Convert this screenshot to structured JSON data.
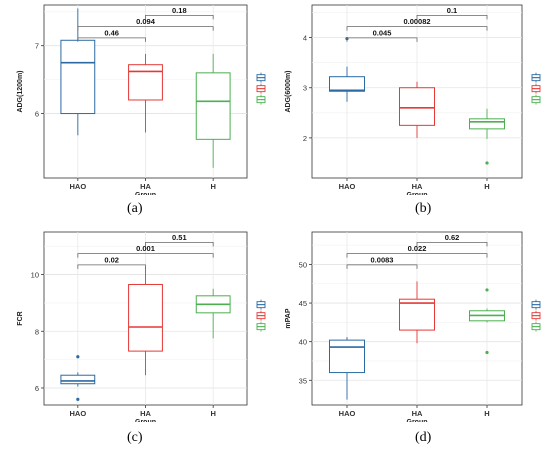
{
  "panels_meta": {
    "group_colors": {
      "HAO": "#2b6aa3",
      "HA": "#e53935",
      "H": "#4caf50"
    },
    "group_order": [
      "HAO",
      "HA",
      "H"
    ]
  },
  "chart_data": [
    {
      "type": "box",
      "caption": "(a)",
      "xlabel": "Group",
      "ylabel": "ADG(1200m)",
      "categories": [
        "HAO",
        "HA",
        "H"
      ],
      "ylim": [
        5.05,
        7.6
      ],
      "yticks": [
        6,
        7
      ],
      "grid": true,
      "legend": "right (color keys only)",
      "boxes": [
        {
          "group": "HAO",
          "min": 5.68,
          "q1": 6.0,
          "median": 6.75,
          "q3": 7.08,
          "max": 7.55,
          "outliers": []
        },
        {
          "group": "HA",
          "min": 5.72,
          "q1": 6.2,
          "median": 6.62,
          "q3": 6.72,
          "max": 6.88,
          "outliers": []
        },
        {
          "group": "H",
          "min": 5.2,
          "q1": 5.62,
          "median": 6.18,
          "q3": 6.6,
          "max": 6.88,
          "outliers": []
        }
      ],
      "comparisons": [
        {
          "from": "HAO",
          "to": "HA",
          "label": "0.46"
        },
        {
          "from": "HAO",
          "to": "H",
          "label": "0.094"
        },
        {
          "from": "HA",
          "to": "H",
          "label": "0.18"
        }
      ]
    },
    {
      "type": "box",
      "caption": "(b)",
      "xlabel": "Group",
      "ylabel": "ADG(6000m)",
      "categories": [
        "HAO",
        "HA",
        "H"
      ],
      "ylim": [
        1.2,
        4.65
      ],
      "yticks": [
        2,
        3,
        4
      ],
      "grid": true,
      "legend": "right (color keys only)",
      "boxes": [
        {
          "group": "HAO",
          "min": 2.72,
          "q1": 2.93,
          "median": 2.95,
          "q3": 3.22,
          "max": 3.42,
          "outliers": [
            3.98
          ]
        },
        {
          "group": "HA",
          "min": 2.0,
          "q1": 2.25,
          "median": 2.6,
          "q3": 3.0,
          "max": 3.12,
          "outliers": []
        },
        {
          "group": "H",
          "min": 1.98,
          "q1": 2.18,
          "median": 2.32,
          "q3": 2.38,
          "max": 2.58,
          "outliers": [
            1.5
          ]
        }
      ],
      "comparisons": [
        {
          "from": "HAO",
          "to": "HA",
          "label": "0.045"
        },
        {
          "from": "HAO",
          "to": "H",
          "label": "0.00082"
        },
        {
          "from": "HA",
          "to": "H",
          "label": "0.1"
        }
      ]
    },
    {
      "type": "box",
      "caption": "(c)",
      "xlabel": "Group",
      "ylabel": "FCR",
      "categories": [
        "HAO",
        "HA",
        "H"
      ],
      "ylim": [
        5.4,
        11.5
      ],
      "yticks": [
        6,
        8,
        10
      ],
      "grid": true,
      "legend": "right (color keys only)",
      "boxes": [
        {
          "group": "HAO",
          "min": 6.05,
          "q1": 6.15,
          "median": 6.25,
          "q3": 6.45,
          "max": 6.55,
          "outliers": [
            7.1,
            5.6
          ]
        },
        {
          "group": "HA",
          "min": 6.45,
          "q1": 7.3,
          "median": 8.15,
          "q3": 9.65,
          "max": 10.25,
          "outliers": []
        },
        {
          "group": "H",
          "min": 7.75,
          "q1": 8.65,
          "median": 8.95,
          "q3": 9.25,
          "max": 9.5,
          "outliers": []
        }
      ],
      "comparisons": [
        {
          "from": "HAO",
          "to": "HA",
          "label": "0.02"
        },
        {
          "from": "HAO",
          "to": "H",
          "label": "0.001"
        },
        {
          "from": "HA",
          "to": "H",
          "label": "0.51"
        }
      ]
    },
    {
      "type": "box",
      "caption": "(d)",
      "xlabel": "Group",
      "ylabel": "mPAP",
      "categories": [
        "HAO",
        "HA",
        "H"
      ],
      "ylim": [
        31.8,
        54.2
      ],
      "yticks": [
        35,
        40,
        45,
        50
      ],
      "grid": true,
      "legend": "right (color keys only)",
      "boxes": [
        {
          "group": "HAO",
          "min": 32.5,
          "q1": 36.0,
          "median": 39.3,
          "q3": 40.2,
          "max": 40.6,
          "outliers": []
        },
        {
          "group": "HA",
          "min": 39.8,
          "q1": 41.5,
          "median": 45.0,
          "q3": 45.5,
          "max": 47.8,
          "outliers": []
        },
        {
          "group": "H",
          "min": 42.5,
          "q1": 42.7,
          "median": 43.4,
          "q3": 44.0,
          "max": 44.3,
          "outliers": [
            46.7,
            38.6
          ]
        }
      ],
      "comparisons": [
        {
          "from": "HAO",
          "to": "HA",
          "label": "0.0083"
        },
        {
          "from": "HAO",
          "to": "H",
          "label": "0.022"
        },
        {
          "from": "HA",
          "to": "H",
          "label": "0.62"
        }
      ]
    }
  ]
}
